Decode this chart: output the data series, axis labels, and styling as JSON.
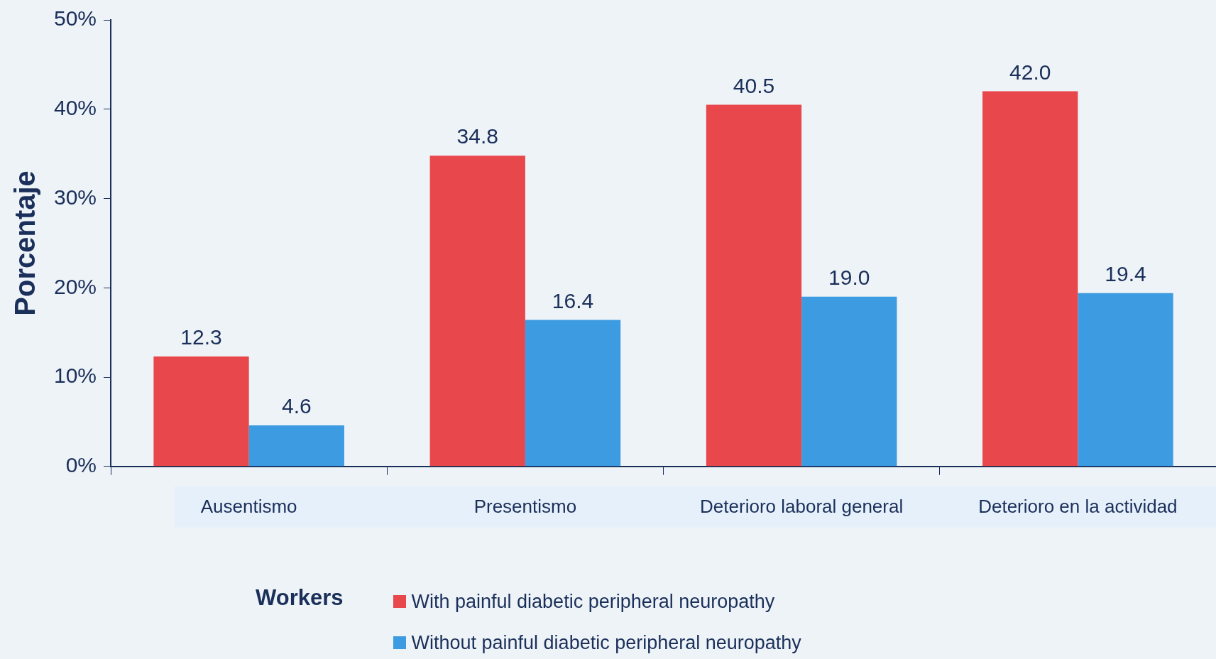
{
  "chart_data": {
    "type": "bar",
    "ylabel": "Porcentaje",
    "legend_title": "Workers",
    "categories": [
      "Ausentismo",
      "Presentismo",
      "Deterioro laboral general",
      "Deterioro en la actividad"
    ],
    "series": [
      {
        "name": "With painful diabetic peripheral neuropathy",
        "color": "#e8474b",
        "values": [
          12.3,
          34.8,
          40.5,
          42.0
        ]
      },
      {
        "name": "Without painful diabetic peripheral neuropathy",
        "color": "#3d9be2",
        "values": [
          4.6,
          16.4,
          19.0,
          19.4
        ]
      }
    ],
    "value_labels": [
      [
        "12.3",
        "34.8",
        "40.5",
        "42.0"
      ],
      [
        "4.6",
        "16.4",
        "19.0",
        "19.4"
      ]
    ],
    "ylim": [
      0,
      50
    ],
    "yticks": [
      {
        "value": 0,
        "label": "0%"
      },
      {
        "value": 10,
        "label": "10%"
      },
      {
        "value": 20,
        "label": "20%"
      },
      {
        "value": 30,
        "label": "30%"
      },
      {
        "value": 40,
        "label": "40%"
      },
      {
        "value": 50,
        "label": "50%"
      }
    ],
    "grid": false,
    "legend": "bottom"
  }
}
